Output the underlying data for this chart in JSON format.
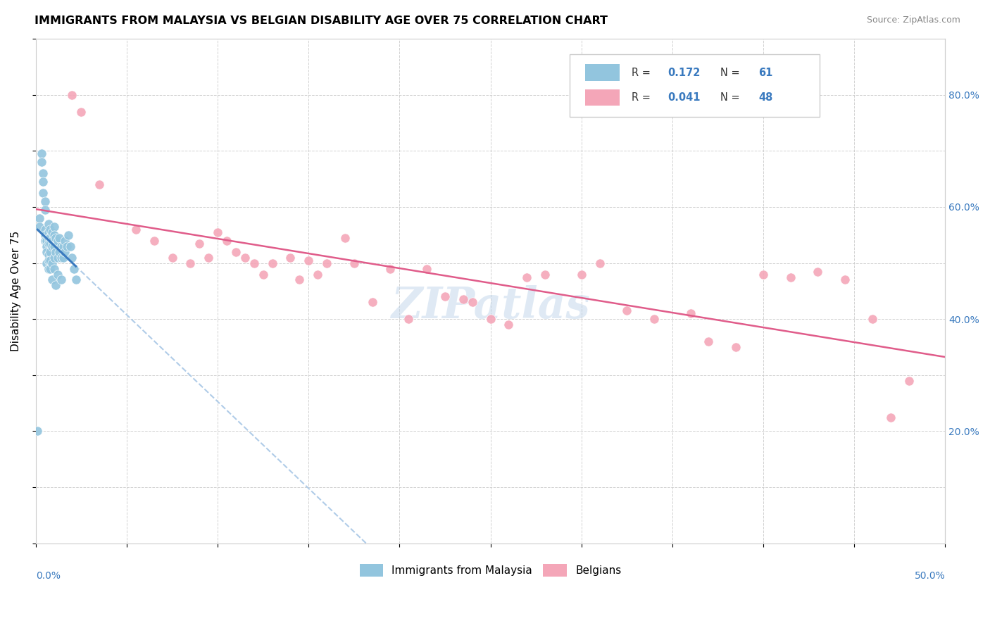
{
  "title": "IMMIGRANTS FROM MALAYSIA VS BELGIAN DISABILITY AGE OVER 75 CORRELATION CHART",
  "source": "Source: ZipAtlas.com",
  "ylabel": "Disability Age Over 75",
  "color_blue": "#92c5de",
  "color_pink": "#f4a6b8",
  "trend_blue": "#3a7abf",
  "trend_pink": "#e05c8a",
  "trend_dashed_color": "#b0cce8",
  "watermark": "ZIPatlas",
  "blue_points_x": [
    0.001,
    0.002,
    0.002,
    0.003,
    0.003,
    0.004,
    0.004,
    0.004,
    0.005,
    0.005,
    0.005,
    0.005,
    0.005,
    0.006,
    0.006,
    0.006,
    0.006,
    0.007,
    0.007,
    0.007,
    0.007,
    0.007,
    0.007,
    0.007,
    0.008,
    0.008,
    0.008,
    0.008,
    0.008,
    0.008,
    0.009,
    0.009,
    0.009,
    0.009,
    0.009,
    0.01,
    0.01,
    0.01,
    0.01,
    0.01,
    0.011,
    0.011,
    0.011,
    0.012,
    0.012,
    0.012,
    0.013,
    0.013,
    0.014,
    0.014,
    0.014,
    0.015,
    0.015,
    0.016,
    0.016,
    0.017,
    0.018,
    0.019,
    0.02,
    0.021,
    0.022
  ],
  "blue_points_y": [
    0.2,
    0.58,
    0.565,
    0.695,
    0.68,
    0.66,
    0.645,
    0.625,
    0.61,
    0.595,
    0.56,
    0.55,
    0.54,
    0.54,
    0.53,
    0.52,
    0.5,
    0.57,
    0.555,
    0.545,
    0.535,
    0.515,
    0.505,
    0.49,
    0.56,
    0.545,
    0.535,
    0.52,
    0.505,
    0.49,
    0.555,
    0.54,
    0.53,
    0.5,
    0.47,
    0.565,
    0.55,
    0.53,
    0.51,
    0.49,
    0.545,
    0.52,
    0.46,
    0.54,
    0.51,
    0.48,
    0.545,
    0.52,
    0.53,
    0.51,
    0.47,
    0.53,
    0.51,
    0.54,
    0.52,
    0.53,
    0.55,
    0.53,
    0.51,
    0.49,
    0.47
  ],
  "pink_points_x": [
    0.02,
    0.025,
    0.035,
    0.055,
    0.065,
    0.075,
    0.085,
    0.09,
    0.095,
    0.1,
    0.105,
    0.11,
    0.115,
    0.12,
    0.125,
    0.13,
    0.14,
    0.145,
    0.15,
    0.155,
    0.16,
    0.17,
    0.175,
    0.185,
    0.195,
    0.205,
    0.215,
    0.225,
    0.235,
    0.24,
    0.25,
    0.26,
    0.27,
    0.28,
    0.3,
    0.31,
    0.325,
    0.34,
    0.36,
    0.37,
    0.385,
    0.4,
    0.415,
    0.43,
    0.445,
    0.46,
    0.47,
    0.48
  ],
  "pink_points_y": [
    0.8,
    0.77,
    0.64,
    0.56,
    0.54,
    0.51,
    0.5,
    0.535,
    0.51,
    0.555,
    0.54,
    0.52,
    0.51,
    0.5,
    0.48,
    0.5,
    0.51,
    0.47,
    0.505,
    0.48,
    0.5,
    0.545,
    0.5,
    0.43,
    0.49,
    0.4,
    0.49,
    0.44,
    0.435,
    0.43,
    0.4,
    0.39,
    0.475,
    0.48,
    0.48,
    0.5,
    0.415,
    0.4,
    0.41,
    0.36,
    0.35,
    0.48,
    0.475,
    0.485,
    0.47,
    0.4,
    0.225,
    0.29
  ],
  "xlim": [
    0.0,
    0.5
  ],
  "ylim": [
    0.0,
    0.9
  ],
  "xtick_positions": [
    0.0,
    0.05,
    0.1,
    0.15,
    0.2,
    0.25,
    0.3,
    0.35,
    0.4,
    0.45,
    0.5
  ],
  "ytick_positions": [
    0.0,
    0.1,
    0.2,
    0.3,
    0.4,
    0.5,
    0.6,
    0.7,
    0.8,
    0.9
  ],
  "right_ytick_vals": [
    0.2,
    0.4,
    0.6,
    0.8
  ],
  "right_ytick_labels": [
    "20.0%",
    "40.0%",
    "60.0%",
    "80.0%"
  ],
  "legend_r1_val": "0.172",
  "legend_r1_n": "61",
  "legend_r2_val": "0.041",
  "legend_r2_n": "48"
}
